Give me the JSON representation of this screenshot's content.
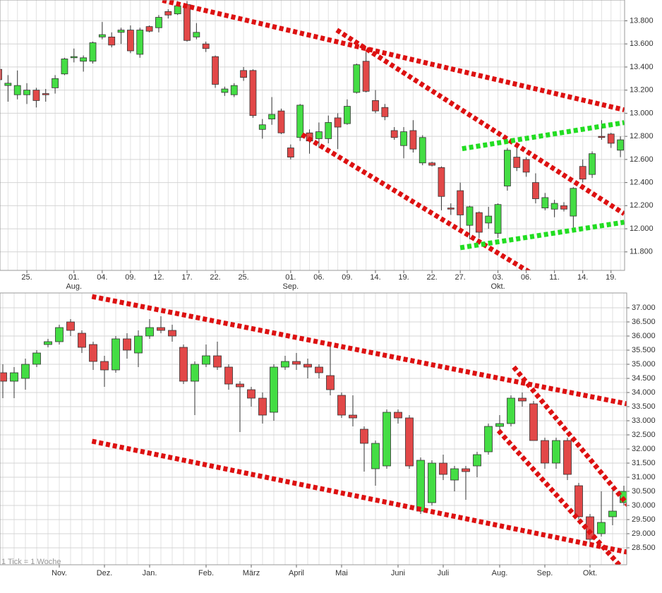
{
  "chart_data": [
    {
      "type": "candlestick",
      "categories": [
        null,
        null,
        null,
        "25.",
        null,
        null,
        null,
        null,
        "01.",
        null,
        null,
        "04.",
        null,
        null,
        "09.",
        null,
        null,
        "12.",
        null,
        null,
        "17.",
        null,
        null,
        "22.",
        null,
        null,
        "25.",
        null,
        null,
        null,
        null,
        "01.",
        null,
        null,
        "06.",
        null,
        null,
        "09.",
        null,
        null,
        "14.",
        null,
        null,
        "19.",
        null,
        null,
        "22.",
        null,
        null,
        "27.",
        null,
        null,
        null,
        "03.",
        null,
        null,
        "06.",
        null,
        null,
        "11.",
        null,
        null,
        "14.",
        null,
        null,
        "19.",
        null
      ],
      "months": [
        null,
        null,
        null,
        null,
        null,
        null,
        null,
        null,
        "Aug.",
        null,
        null,
        null,
        null,
        null,
        null,
        null,
        null,
        null,
        null,
        null,
        null,
        null,
        null,
        null,
        null,
        null,
        null,
        null,
        null,
        null,
        null,
        "Sep.",
        null,
        null,
        null,
        null,
        null,
        null,
        null,
        null,
        null,
        null,
        null,
        null,
        null,
        null,
        null,
        null,
        null,
        null,
        null,
        null,
        null,
        "Okt.",
        null,
        null,
        null,
        null,
        null,
        null,
        null,
        null,
        null,
        null,
        null,
        null,
        null
      ],
      "open": [
        13380,
        13240,
        13160,
        13160,
        13200,
        13170,
        13220,
        13340,
        13480,
        13450,
        13450,
        13660,
        13660,
        13700,
        13720,
        13510,
        13750,
        13740,
        13880,
        13860,
        13940,
        13660,
        13600,
        13490,
        13180,
        13160,
        13370,
        13370,
        12860,
        12950,
        13020,
        12700,
        12790,
        12830,
        12780,
        12780,
        12960,
        12910,
        13180,
        13450,
        13110,
        13050,
        12850,
        12720,
        12850,
        12570,
        12570,
        12530,
        12180,
        12330,
        12030,
        12140,
        12050,
        11960,
        12370,
        12620,
        12600,
        12400,
        12180,
        12170,
        12200,
        12110,
        12540,
        12470,
        12800,
        12820,
        12680
      ],
      "high": [
        13420,
        13330,
        13370,
        13260,
        13220,
        13210,
        13330,
        13480,
        13560,
        13500,
        13620,
        13790,
        13700,
        13740,
        13760,
        13740,
        13760,
        13850,
        13900,
        13970,
        13970,
        13780,
        13620,
        13500,
        13230,
        13260,
        13400,
        13380,
        12950,
        13140,
        13040,
        12730,
        13080,
        12860,
        12920,
        12980,
        13000,
        13120,
        13430,
        13530,
        13200,
        13080,
        12880,
        12880,
        12940,
        12810,
        12580,
        12540,
        12220,
        12400,
        12200,
        12150,
        12190,
        12220,
        12700,
        12720,
        12620,
        12480,
        12310,
        12250,
        12230,
        12360,
        12600,
        12670,
        12940,
        12830,
        12800
      ],
      "low": [
        13200,
        13100,
        13120,
        13080,
        13050,
        13100,
        13170,
        13330,
        13440,
        13360,
        13430,
        13640,
        13570,
        13600,
        13520,
        13480,
        13700,
        13700,
        13820,
        13850,
        13620,
        13640,
        13530,
        13220,
        13150,
        13140,
        13280,
        12960,
        12780,
        12900,
        12820,
        12600,
        12760,
        12650,
        12700,
        12740,
        12690,
        12900,
        13170,
        13180,
        13000,
        12940,
        12770,
        12610,
        12660,
        12550,
        12540,
        12160,
        12120,
        11990,
        11910,
        11920,
        12000,
        11920,
        12330,
        12500,
        12450,
        12220,
        12160,
        12100,
        12150,
        12010,
        12400,
        12440,
        12770,
        12700,
        12620
      ],
      "close": [
        13290,
        13260,
        13240,
        13200,
        13110,
        13160,
        13300,
        13470,
        13490,
        13480,
        13610,
        13680,
        13590,
        13720,
        13540,
        13720,
        13710,
        13830,
        13850,
        13930,
        13630,
        13700,
        13560,
        13250,
        13210,
        13240,
        13310,
        12980,
        12900,
        12990,
        12830,
        12620,
        13070,
        12760,
        12840,
        12920,
        12880,
        13060,
        13420,
        13190,
        13020,
        12970,
        12790,
        12840,
        12690,
        12790,
        12550,
        12280,
        12170,
        12120,
        12190,
        11970,
        12110,
        12210,
        12680,
        12530,
        12490,
        12260,
        12270,
        12220,
        12170,
        12350,
        12430,
        12650,
        12790,
        12740,
        12770
      ],
      "up_color": "#44dd44",
      "down_color": "#e24848",
      "ylim": [
        11640,
        13980
      ],
      "yticks": [
        {
          "value": 11800,
          "label": "11.800"
        },
        {
          "value": 12000,
          "label": "12.000"
        },
        {
          "value": 12200,
          "label": "12.200"
        },
        {
          "value": 12400,
          "label": "12.400"
        },
        {
          "value": 12600,
          "label": "12.600"
        },
        {
          "value": 12800,
          "label": "12.800"
        },
        {
          "value": 13000,
          "label": "13.000"
        },
        {
          "value": 13200,
          "label": "13.200"
        },
        {
          "value": 13400,
          "label": "13.400"
        },
        {
          "value": 13600,
          "label": "13.600"
        },
        {
          "value": 13800,
          "label": "13.800"
        }
      ],
      "grid": true,
      "trend_lines": [
        {
          "color": "#dd1111",
          "points": [
            [
              17.4,
              13977
            ],
            [
              66.4,
              13029
            ]
          ]
        },
        {
          "color": "#dd1111",
          "points": [
            [
              35.9,
              13720
            ],
            [
              66.4,
              12130
            ]
          ]
        },
        {
          "color": "#dd1111",
          "points": [
            [
              32.2,
              12815
            ],
            [
              60.1,
              11440
            ]
          ]
        },
        {
          "color": "#22dd22",
          "points": [
            [
              49.2,
              12693
            ],
            [
              66.4,
              12919
            ]
          ]
        },
        {
          "color": "#22dd22",
          "points": [
            [
              49.0,
              11836
            ],
            [
              66.4,
              12057
            ]
          ]
        }
      ]
    },
    {
      "type": "candlestick",
      "note": "1 Tick = 1 Woche",
      "categories": [
        null,
        null,
        null,
        null,
        null,
        "Nov.",
        null,
        null,
        null,
        "Dez.",
        null,
        null,
        null,
        "Jan.",
        null,
        null,
        null,
        null,
        "Feb.",
        null,
        null,
        null,
        "März",
        null,
        null,
        null,
        "April",
        null,
        null,
        null,
        "Mai",
        null,
        null,
        null,
        null,
        "Juni",
        null,
        null,
        null,
        "Juli",
        null,
        null,
        null,
        null,
        "Aug.",
        null,
        null,
        null,
        "Sep.",
        null,
        null,
        null,
        "Okt.",
        null,
        null,
        null
      ],
      "open": [
        34700,
        34400,
        34500,
        35000,
        35700,
        35800,
        36500,
        36100,
        35700,
        35100,
        34800,
        35900,
        35400,
        36000,
        36300,
        36200,
        35600,
        34400,
        35000,
        35300,
        34900,
        34300,
        34100,
        33800,
        33300,
        34900,
        35100,
        35000,
        34900,
        34600,
        33900,
        33200,
        32700,
        31300,
        31400,
        33300,
        33100,
        29800,
        30100,
        31500,
        30900,
        31300,
        31400,
        31900,
        32800,
        32900,
        33800,
        33600,
        32300,
        31500,
        32300,
        30700,
        29600,
        29000,
        29600,
        30100
      ],
      "high": [
        35000,
        34900,
        35200,
        35500,
        35900,
        36400,
        36600,
        36200,
        35800,
        35300,
        36000,
        36100,
        36200,
        36600,
        36700,
        36400,
        35700,
        35100,
        35700,
        35800,
        35000,
        34400,
        34200,
        34000,
        35000,
        35300,
        35400,
        35200,
        35000,
        35700,
        34000,
        33900,
        32800,
        32300,
        33400,
        33400,
        33200,
        31700,
        31600,
        31800,
        31400,
        31400,
        31900,
        32900,
        33200,
        33900,
        34000,
        33700,
        32400,
        32400,
        32400,
        30800,
        29700,
        30500,
        30600,
        30700
      ],
      "low": [
        33800,
        33800,
        34100,
        34900,
        35600,
        35700,
        36000,
        35400,
        34800,
        34200,
        34700,
        35200,
        34900,
        35900,
        36100,
        35800,
        34300,
        33200,
        34900,
        34800,
        34100,
        32600,
        33500,
        32900,
        33000,
        34800,
        34800,
        34500,
        34500,
        33900,
        33100,
        32800,
        31200,
        30700,
        31300,
        32900,
        31300,
        29700,
        30000,
        30900,
        30500,
        30200,
        31000,
        31800,
        32600,
        32800,
        33500,
        32300,
        31300,
        31300,
        30900,
        29500,
        28600,
        28900,
        29300,
        30000
      ],
      "close": [
        34400,
        34700,
        35000,
        35400,
        35800,
        36300,
        36200,
        35600,
        35100,
        34800,
        35900,
        35500,
        36000,
        36300,
        36200,
        36000,
        34400,
        35000,
        35300,
        34900,
        34300,
        34200,
        33800,
        33200,
        34900,
        35100,
        35000,
        34900,
        34700,
        34100,
        33200,
        33100,
        32200,
        32200,
        33300,
        33100,
        31400,
        31600,
        31500,
        31100,
        31300,
        31200,
        31800,
        32800,
        32900,
        33800,
        33700,
        32300,
        31500,
        32300,
        31100,
        29600,
        28800,
        29400,
        29800,
        30500
      ],
      "up_color": "#44dd44",
      "down_color": "#e24848",
      "ylim": [
        27900,
        37525
      ],
      "yticks": [
        {
          "value": 28500,
          "label": "28.500"
        },
        {
          "value": 29000,
          "label": "29.000"
        },
        {
          "value": 29500,
          "label": "29.500"
        },
        {
          "value": 30000,
          "label": "30.000"
        },
        {
          "value": 30500,
          "label": "30.500"
        },
        {
          "value": 31000,
          "label": "31.000"
        },
        {
          "value": 31500,
          "label": "31.500"
        },
        {
          "value": 32000,
          "label": "32.000"
        },
        {
          "value": 32500,
          "label": "32.500"
        },
        {
          "value": 33000,
          "label": "33.000"
        },
        {
          "value": 33500,
          "label": "33.500"
        },
        {
          "value": 34000,
          "label": "34.000"
        },
        {
          "value": 34500,
          "label": "34.500"
        },
        {
          "value": 35000,
          "label": "35.000"
        },
        {
          "value": 35500,
          "label": "35.500"
        },
        {
          "value": 36000,
          "label": "36.000"
        },
        {
          "value": 36500,
          "label": "36.500"
        },
        {
          "value": 37000,
          "label": "37.000"
        }
      ],
      "grid": true,
      "trend_lines": [
        {
          "color": "#dd1111",
          "points": [
            [
              7.9,
              37400
            ],
            [
              55.25,
              33600
            ]
          ]
        },
        {
          "color": "#dd1111",
          "points": [
            [
              7.9,
              32275
            ],
            [
              55.25,
              28350
            ]
          ]
        },
        {
          "color": "#dd1111",
          "points": [
            [
              45.25,
              34900
            ],
            [
              55.6,
              29900
            ]
          ]
        },
        {
          "color": "#dd1111",
          "points": [
            [
              43.9,
              32650
            ],
            [
              55.25,
              27600
            ]
          ]
        }
      ]
    }
  ]
}
